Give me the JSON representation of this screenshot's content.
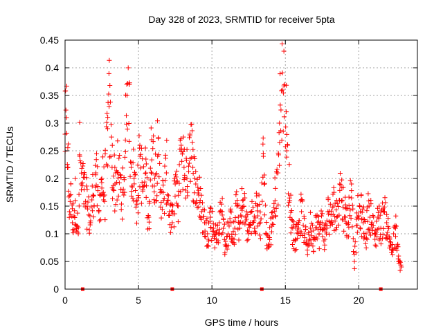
{
  "chart_data": {
    "type": "scatter",
    "title": "Day 328 of 2023, SRMTID for receiver 5pta",
    "xlabel": "GPS time / hours",
    "ylabel": "SRMTID / TECUs",
    "xlim": [
      0,
      23.99
    ],
    "ylim": [
      0,
      0.45
    ],
    "xticks": [
      0,
      5,
      10,
      15,
      20
    ],
    "xtick_labels": [
      "0",
      "5",
      "10",
      "15",
      "20"
    ],
    "yticks": [
      0,
      0.05,
      0.1,
      0.15,
      0.2,
      0.25,
      0.3,
      0.35,
      0.4,
      0.45
    ],
    "ytick_labels": [
      "0",
      "0.05",
      "0.1",
      "0.15",
      "0.2",
      "0.25",
      "0.3",
      "0.35",
      "0.4",
      "0.45"
    ],
    "grid": true,
    "marker": "+",
    "marker_color": "#ff0000",
    "zero_markers_x": [
      1.2,
      7.3,
      13.4,
      21.5
    ],
    "series": [
      {
        "name": "SRMTID",
        "x_start": 0.0,
        "x_end": 22.9,
        "x_step": 0.05,
        "points": [
          [
            0.0,
            0.28
          ],
          [
            0.1,
            0.31
          ],
          [
            0.2,
            0.22
          ],
          [
            0.3,
            0.14
          ],
          [
            0.4,
            0.19
          ],
          [
            0.5,
            0.12
          ],
          [
            0.7,
            0.16
          ],
          [
            0.9,
            0.1
          ],
          [
            1.0,
            0.24
          ],
          [
            1.1,
            0.19
          ],
          [
            1.3,
            0.18
          ],
          [
            1.5,
            0.15
          ],
          [
            1.7,
            0.12
          ],
          [
            1.9,
            0.17
          ],
          [
            2.1,
            0.21
          ],
          [
            2.3,
            0.14
          ],
          [
            2.5,
            0.2
          ],
          [
            2.7,
            0.17
          ],
          [
            2.9,
            0.29
          ],
          [
            3.0,
            0.33
          ],
          [
            3.2,
            0.22
          ],
          [
            3.4,
            0.19
          ],
          [
            3.6,
            0.21
          ],
          [
            3.8,
            0.18
          ],
          [
            4.0,
            0.17
          ],
          [
            4.2,
            0.37
          ],
          [
            4.3,
            0.4
          ],
          [
            4.5,
            0.22
          ],
          [
            4.7,
            0.2
          ],
          [
            4.9,
            0.16
          ],
          [
            5.1,
            0.24
          ],
          [
            5.3,
            0.18
          ],
          [
            5.5,
            0.21
          ],
          [
            5.7,
            0.13
          ],
          [
            5.9,
            0.27
          ],
          [
            6.1,
            0.2
          ],
          [
            6.3,
            0.24
          ],
          [
            6.5,
            0.18
          ],
          [
            6.7,
            0.16
          ],
          [
            6.9,
            0.21
          ],
          [
            7.1,
            0.14
          ],
          [
            7.3,
            0.12
          ],
          [
            7.5,
            0.19
          ],
          [
            7.7,
            0.15
          ],
          [
            7.9,
            0.26
          ],
          [
            8.1,
            0.22
          ],
          [
            8.3,
            0.2
          ],
          [
            8.5,
            0.28
          ],
          [
            8.7,
            0.22
          ],
          [
            8.9,
            0.19
          ],
          [
            9.1,
            0.17
          ],
          [
            9.3,
            0.14
          ],
          [
            9.5,
            0.12
          ],
          [
            9.7,
            0.1
          ],
          [
            9.9,
            0.13
          ],
          [
            10.1,
            0.11
          ],
          [
            10.3,
            0.09
          ],
          [
            10.5,
            0.12
          ],
          [
            10.7,
            0.14
          ],
          [
            10.9,
            0.08
          ],
          [
            11.1,
            0.1
          ],
          [
            11.3,
            0.12
          ],
          [
            11.5,
            0.09
          ],
          [
            11.7,
            0.15
          ],
          [
            11.9,
            0.11
          ],
          [
            12.1,
            0.16
          ],
          [
            12.3,
            0.13
          ],
          [
            12.5,
            0.1
          ],
          [
            12.7,
            0.14
          ],
          [
            12.9,
            0.11
          ],
          [
            13.1,
            0.15
          ],
          [
            13.3,
            0.12
          ],
          [
            13.5,
            0.24
          ],
          [
            13.7,
            0.1
          ],
          [
            13.9,
            0.08
          ],
          [
            14.1,
            0.13
          ],
          [
            14.3,
            0.16
          ],
          [
            14.5,
            0.21
          ],
          [
            14.6,
            0.3
          ],
          [
            14.8,
            0.36
          ],
          [
            14.9,
            0.43
          ],
          [
            15.1,
            0.25
          ],
          [
            15.3,
            0.16
          ],
          [
            15.5,
            0.11
          ],
          [
            15.7,
            0.09
          ],
          [
            15.9,
            0.12
          ],
          [
            16.1,
            0.14
          ],
          [
            16.3,
            0.1
          ],
          [
            16.5,
            0.08
          ],
          [
            16.7,
            0.11
          ],
          [
            16.9,
            0.09
          ],
          [
            17.1,
            0.13
          ],
          [
            17.3,
            0.1
          ],
          [
            17.5,
            0.12
          ],
          [
            17.7,
            0.09
          ],
          [
            17.9,
            0.14
          ],
          [
            18.1,
            0.12
          ],
          [
            18.3,
            0.15
          ],
          [
            18.5,
            0.13
          ],
          [
            18.7,
            0.19
          ],
          [
            18.9,
            0.16
          ],
          [
            19.1,
            0.13
          ],
          [
            19.3,
            0.12
          ],
          [
            19.5,
            0.19
          ],
          [
            19.7,
            0.05
          ],
          [
            19.9,
            0.13
          ],
          [
            20.1,
            0.14
          ],
          [
            20.3,
            0.12
          ],
          [
            20.5,
            0.1
          ],
          [
            20.7,
            0.15
          ],
          [
            20.9,
            0.12
          ],
          [
            21.1,
            0.09
          ],
          [
            21.3,
            0.13
          ],
          [
            21.5,
            0.11
          ],
          [
            21.7,
            0.14
          ],
          [
            21.9,
            0.12
          ],
          [
            22.1,
            0.09
          ],
          [
            22.3,
            0.07
          ],
          [
            22.5,
            0.11
          ],
          [
            22.7,
            0.05
          ],
          [
            22.9,
            0.04
          ]
        ]
      }
    ]
  }
}
